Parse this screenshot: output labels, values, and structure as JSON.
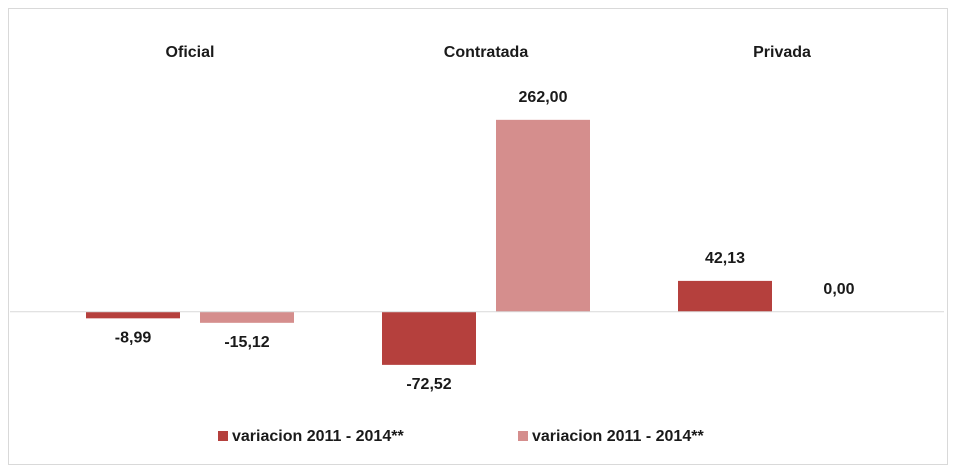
{
  "chart_data": {
    "type": "bar",
    "categories": [
      "Oficial",
      "Contratada",
      "Privada"
    ],
    "series": [
      {
        "name": "variacion 2011 - 2014**",
        "color": "#b5403d",
        "values": [
          -8.99,
          -72.52,
          42.13
        ],
        "value_labels": [
          "-8,99",
          "-72,52",
          "42,13"
        ]
      },
      {
        "name": "variacion 2011 - 2014**",
        "color": "#d58e8d",
        "values": [
          -15.12,
          262.0,
          0.0
        ],
        "value_labels": [
          "-15,12",
          "262,00",
          "0,00"
        ]
      }
    ],
    "ylim": [
      -100,
      300
    ]
  }
}
